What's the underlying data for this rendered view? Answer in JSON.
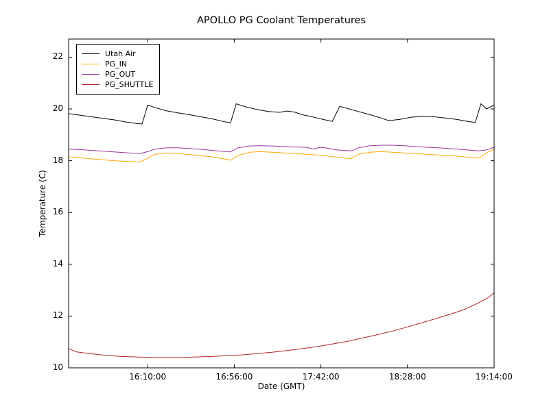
{
  "title": "APOLLO PG Coolant Temperatures",
  "chart_data": {
    "type": "line",
    "title": "APOLLO PG Coolant Temperatures",
    "xlabel": "Date (GMT)",
    "ylabel": "Temperature (C)",
    "grid": false,
    "legend_position": "upper left",
    "x_unit": "minutes since 15:28:00 GMT",
    "x_range": [
      0,
      226
    ],
    "y_range": [
      10,
      22.7
    ],
    "x_ticks": [
      42,
      88,
      134,
      180,
      226
    ],
    "x_tick_labels": [
      "16:10:00",
      "16:56:00",
      "17:42:00",
      "18:28:00",
      "19:14:00"
    ],
    "y_ticks": [
      22,
      20,
      18,
      16,
      14,
      12,
      10
    ],
    "y_tick_labels": [
      "22",
      "20",
      "18",
      "16",
      "14",
      "12",
      "10"
    ],
    "series": [
      {
        "name": "Utah Air",
        "color": "#000000",
        "points": [
          [
            0,
            19.82
          ],
          [
            6,
            19.76
          ],
          [
            12,
            19.7
          ],
          [
            18,
            19.64
          ],
          [
            24,
            19.58
          ],
          [
            30,
            19.5
          ],
          [
            36,
            19.44
          ],
          [
            39,
            19.42
          ],
          [
            42,
            20.15
          ],
          [
            46,
            20.05
          ],
          [
            52,
            19.93
          ],
          [
            58,
            19.85
          ],
          [
            64,
            19.78
          ],
          [
            70,
            19.7
          ],
          [
            76,
            19.62
          ],
          [
            82,
            19.52
          ],
          [
            86,
            19.46
          ],
          [
            89,
            20.2
          ],
          [
            94,
            20.08
          ],
          [
            100,
            19.98
          ],
          [
            106,
            19.9
          ],
          [
            112,
            19.87
          ],
          [
            116,
            19.92
          ],
          [
            120,
            19.88
          ],
          [
            124,
            19.78
          ],
          [
            128,
            19.72
          ],
          [
            132,
            19.65
          ],
          [
            136,
            19.58
          ],
          [
            140,
            19.52
          ],
          [
            144,
            20.1
          ],
          [
            148,
            20.02
          ],
          [
            154,
            19.9
          ],
          [
            160,
            19.78
          ],
          [
            166,
            19.65
          ],
          [
            170,
            19.55
          ],
          [
            176,
            19.6
          ],
          [
            182,
            19.68
          ],
          [
            188,
            19.72
          ],
          [
            194,
            19.7
          ],
          [
            200,
            19.65
          ],
          [
            206,
            19.6
          ],
          [
            212,
            19.52
          ],
          [
            216,
            19.48
          ],
          [
            219,
            20.2
          ],
          [
            222,
            20.0
          ],
          [
            226,
            20.15
          ]
        ]
      },
      {
        "name": "PG_IN",
        "color": "#ffa500",
        "points": [
          [
            0,
            18.15
          ],
          [
            8,
            18.1
          ],
          [
            16,
            18.05
          ],
          [
            24,
            18.0
          ],
          [
            32,
            17.97
          ],
          [
            38,
            17.95
          ],
          [
            42,
            18.1
          ],
          [
            46,
            18.25
          ],
          [
            52,
            18.3
          ],
          [
            58,
            18.28
          ],
          [
            64,
            18.24
          ],
          [
            70,
            18.2
          ],
          [
            76,
            18.15
          ],
          [
            82,
            18.08
          ],
          [
            86,
            18.02
          ],
          [
            90,
            18.2
          ],
          [
            96,
            18.33
          ],
          [
            102,
            18.35
          ],
          [
            108,
            18.33
          ],
          [
            114,
            18.3
          ],
          [
            120,
            18.28
          ],
          [
            126,
            18.25
          ],
          [
            132,
            18.22
          ],
          [
            138,
            18.18
          ],
          [
            144,
            18.12
          ],
          [
            150,
            18.08
          ],
          [
            154,
            18.25
          ],
          [
            160,
            18.33
          ],
          [
            166,
            18.35
          ],
          [
            172,
            18.33
          ],
          [
            178,
            18.3
          ],
          [
            184,
            18.28
          ],
          [
            190,
            18.25
          ],
          [
            196,
            18.22
          ],
          [
            202,
            18.2
          ],
          [
            208,
            18.17
          ],
          [
            214,
            18.12
          ],
          [
            218,
            18.1
          ],
          [
            222,
            18.3
          ],
          [
            226,
            18.45
          ]
        ]
      },
      {
        "name": "PG_OUT",
        "color": "#993399",
        "points": [
          [
            0,
            18.45
          ],
          [
            8,
            18.42
          ],
          [
            16,
            18.38
          ],
          [
            24,
            18.34
          ],
          [
            32,
            18.3
          ],
          [
            38,
            18.28
          ],
          [
            42,
            18.35
          ],
          [
            46,
            18.45
          ],
          [
            52,
            18.5
          ],
          [
            58,
            18.5
          ],
          [
            64,
            18.47
          ],
          [
            70,
            18.44
          ],
          [
            76,
            18.4
          ],
          [
            82,
            18.36
          ],
          [
            86,
            18.34
          ],
          [
            90,
            18.5
          ],
          [
            96,
            18.57
          ],
          [
            102,
            18.58
          ],
          [
            108,
            18.57
          ],
          [
            114,
            18.55
          ],
          [
            120,
            18.53
          ],
          [
            126,
            18.52
          ],
          [
            130,
            18.45
          ],
          [
            134,
            18.52
          ],
          [
            138,
            18.48
          ],
          [
            142,
            18.42
          ],
          [
            146,
            18.4
          ],
          [
            150,
            18.38
          ],
          [
            154,
            18.5
          ],
          [
            160,
            18.58
          ],
          [
            166,
            18.6
          ],
          [
            172,
            18.6
          ],
          [
            178,
            18.58
          ],
          [
            184,
            18.55
          ],
          [
            190,
            18.52
          ],
          [
            196,
            18.5
          ],
          [
            202,
            18.47
          ],
          [
            208,
            18.44
          ],
          [
            214,
            18.4
          ],
          [
            218,
            18.38
          ],
          [
            222,
            18.42
          ],
          [
            226,
            18.52
          ]
        ]
      },
      {
        "name": "PG_SHUTTLE",
        "color": "#b22222",
        "points": [
          [
            0,
            10.75
          ],
          [
            4,
            10.62
          ],
          [
            8,
            10.58
          ],
          [
            14,
            10.53
          ],
          [
            20,
            10.48
          ],
          [
            28,
            10.44
          ],
          [
            36,
            10.42
          ],
          [
            44,
            10.4
          ],
          [
            52,
            10.4
          ],
          [
            60,
            10.4
          ],
          [
            68,
            10.42
          ],
          [
            76,
            10.44
          ],
          [
            84,
            10.47
          ],
          [
            92,
            10.5
          ],
          [
            100,
            10.55
          ],
          [
            108,
            10.6
          ],
          [
            116,
            10.67
          ],
          [
            124,
            10.74
          ],
          [
            132,
            10.82
          ],
          [
            140,
            10.92
          ],
          [
            148,
            11.02
          ],
          [
            156,
            11.15
          ],
          [
            164,
            11.28
          ],
          [
            172,
            11.42
          ],
          [
            180,
            11.58
          ],
          [
            188,
            11.75
          ],
          [
            196,
            11.92
          ],
          [
            204,
            12.1
          ],
          [
            210,
            12.25
          ],
          [
            216,
            12.45
          ],
          [
            220,
            12.6
          ],
          [
            223,
            12.72
          ],
          [
            226,
            12.9
          ]
        ]
      }
    ]
  }
}
